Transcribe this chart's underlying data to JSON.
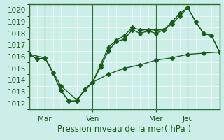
{
  "xlabel": "Pression niveau de la mer( hPa )",
  "bg_color": "#cceee8",
  "grid_color": "#ffffff",
  "line_color": "#1a5c1a",
  "xlim": [
    0,
    24
  ],
  "ylim": [
    1011.5,
    1020.5
  ],
  "yticks": [
    1012,
    1013,
    1014,
    1015,
    1016,
    1017,
    1018,
    1019,
    1020
  ],
  "vline_positions": [
    2,
    8,
    16,
    20
  ],
  "xtick_positions": [
    2,
    8,
    16,
    20
  ],
  "xtick_labels": [
    "Mar",
    "Ven",
    "Mer",
    "Jeu"
  ],
  "series1": {
    "x": [
      0,
      1,
      2,
      3,
      4,
      5,
      6,
      7,
      8,
      9,
      10,
      11,
      12,
      13,
      14,
      15,
      16,
      17,
      18,
      19,
      20,
      21,
      22,
      23,
      24
    ],
    "y": [
      1016.2,
      1015.8,
      1015.9,
      1014.6,
      1013.1,
      1012.2,
      1012.2,
      1013.2,
      1013.8,
      1015.3,
      1016.8,
      1017.4,
      1017.8,
      1018.5,
      1018.3,
      1018.3,
      1018.3,
      1018.3,
      1019.0,
      1019.7,
      1020.2,
      1019.0,
      1018.0,
      1017.8,
      1016.4
    ]
  },
  "series2": {
    "x": [
      0,
      1,
      2,
      3,
      4,
      5,
      6,
      7,
      8,
      9,
      10,
      11,
      12,
      13,
      14,
      15,
      16,
      17,
      18,
      19,
      20,
      21,
      22,
      23,
      24
    ],
    "y": [
      1016.2,
      1015.8,
      1015.9,
      1014.6,
      1013.1,
      1012.2,
      1012.2,
      1013.2,
      1013.8,
      1015.1,
      1016.5,
      1017.3,
      1017.5,
      1018.3,
      1018.0,
      1018.2,
      1018.0,
      1018.3,
      1018.8,
      1019.5,
      1020.2,
      1019.0,
      1018.0,
      1017.8,
      1016.4
    ]
  },
  "series3": {
    "x": [
      0,
      2,
      4,
      6,
      8,
      10,
      12,
      14,
      16,
      18,
      20,
      22,
      24
    ],
    "y": [
      1016.2,
      1015.9,
      1013.5,
      1012.3,
      1013.8,
      1014.5,
      1015.0,
      1015.3,
      1015.7,
      1015.9,
      1016.2,
      1016.3,
      1016.4
    ]
  },
  "marker": "D",
  "markersize": 3,
  "linewidth": 1.0
}
